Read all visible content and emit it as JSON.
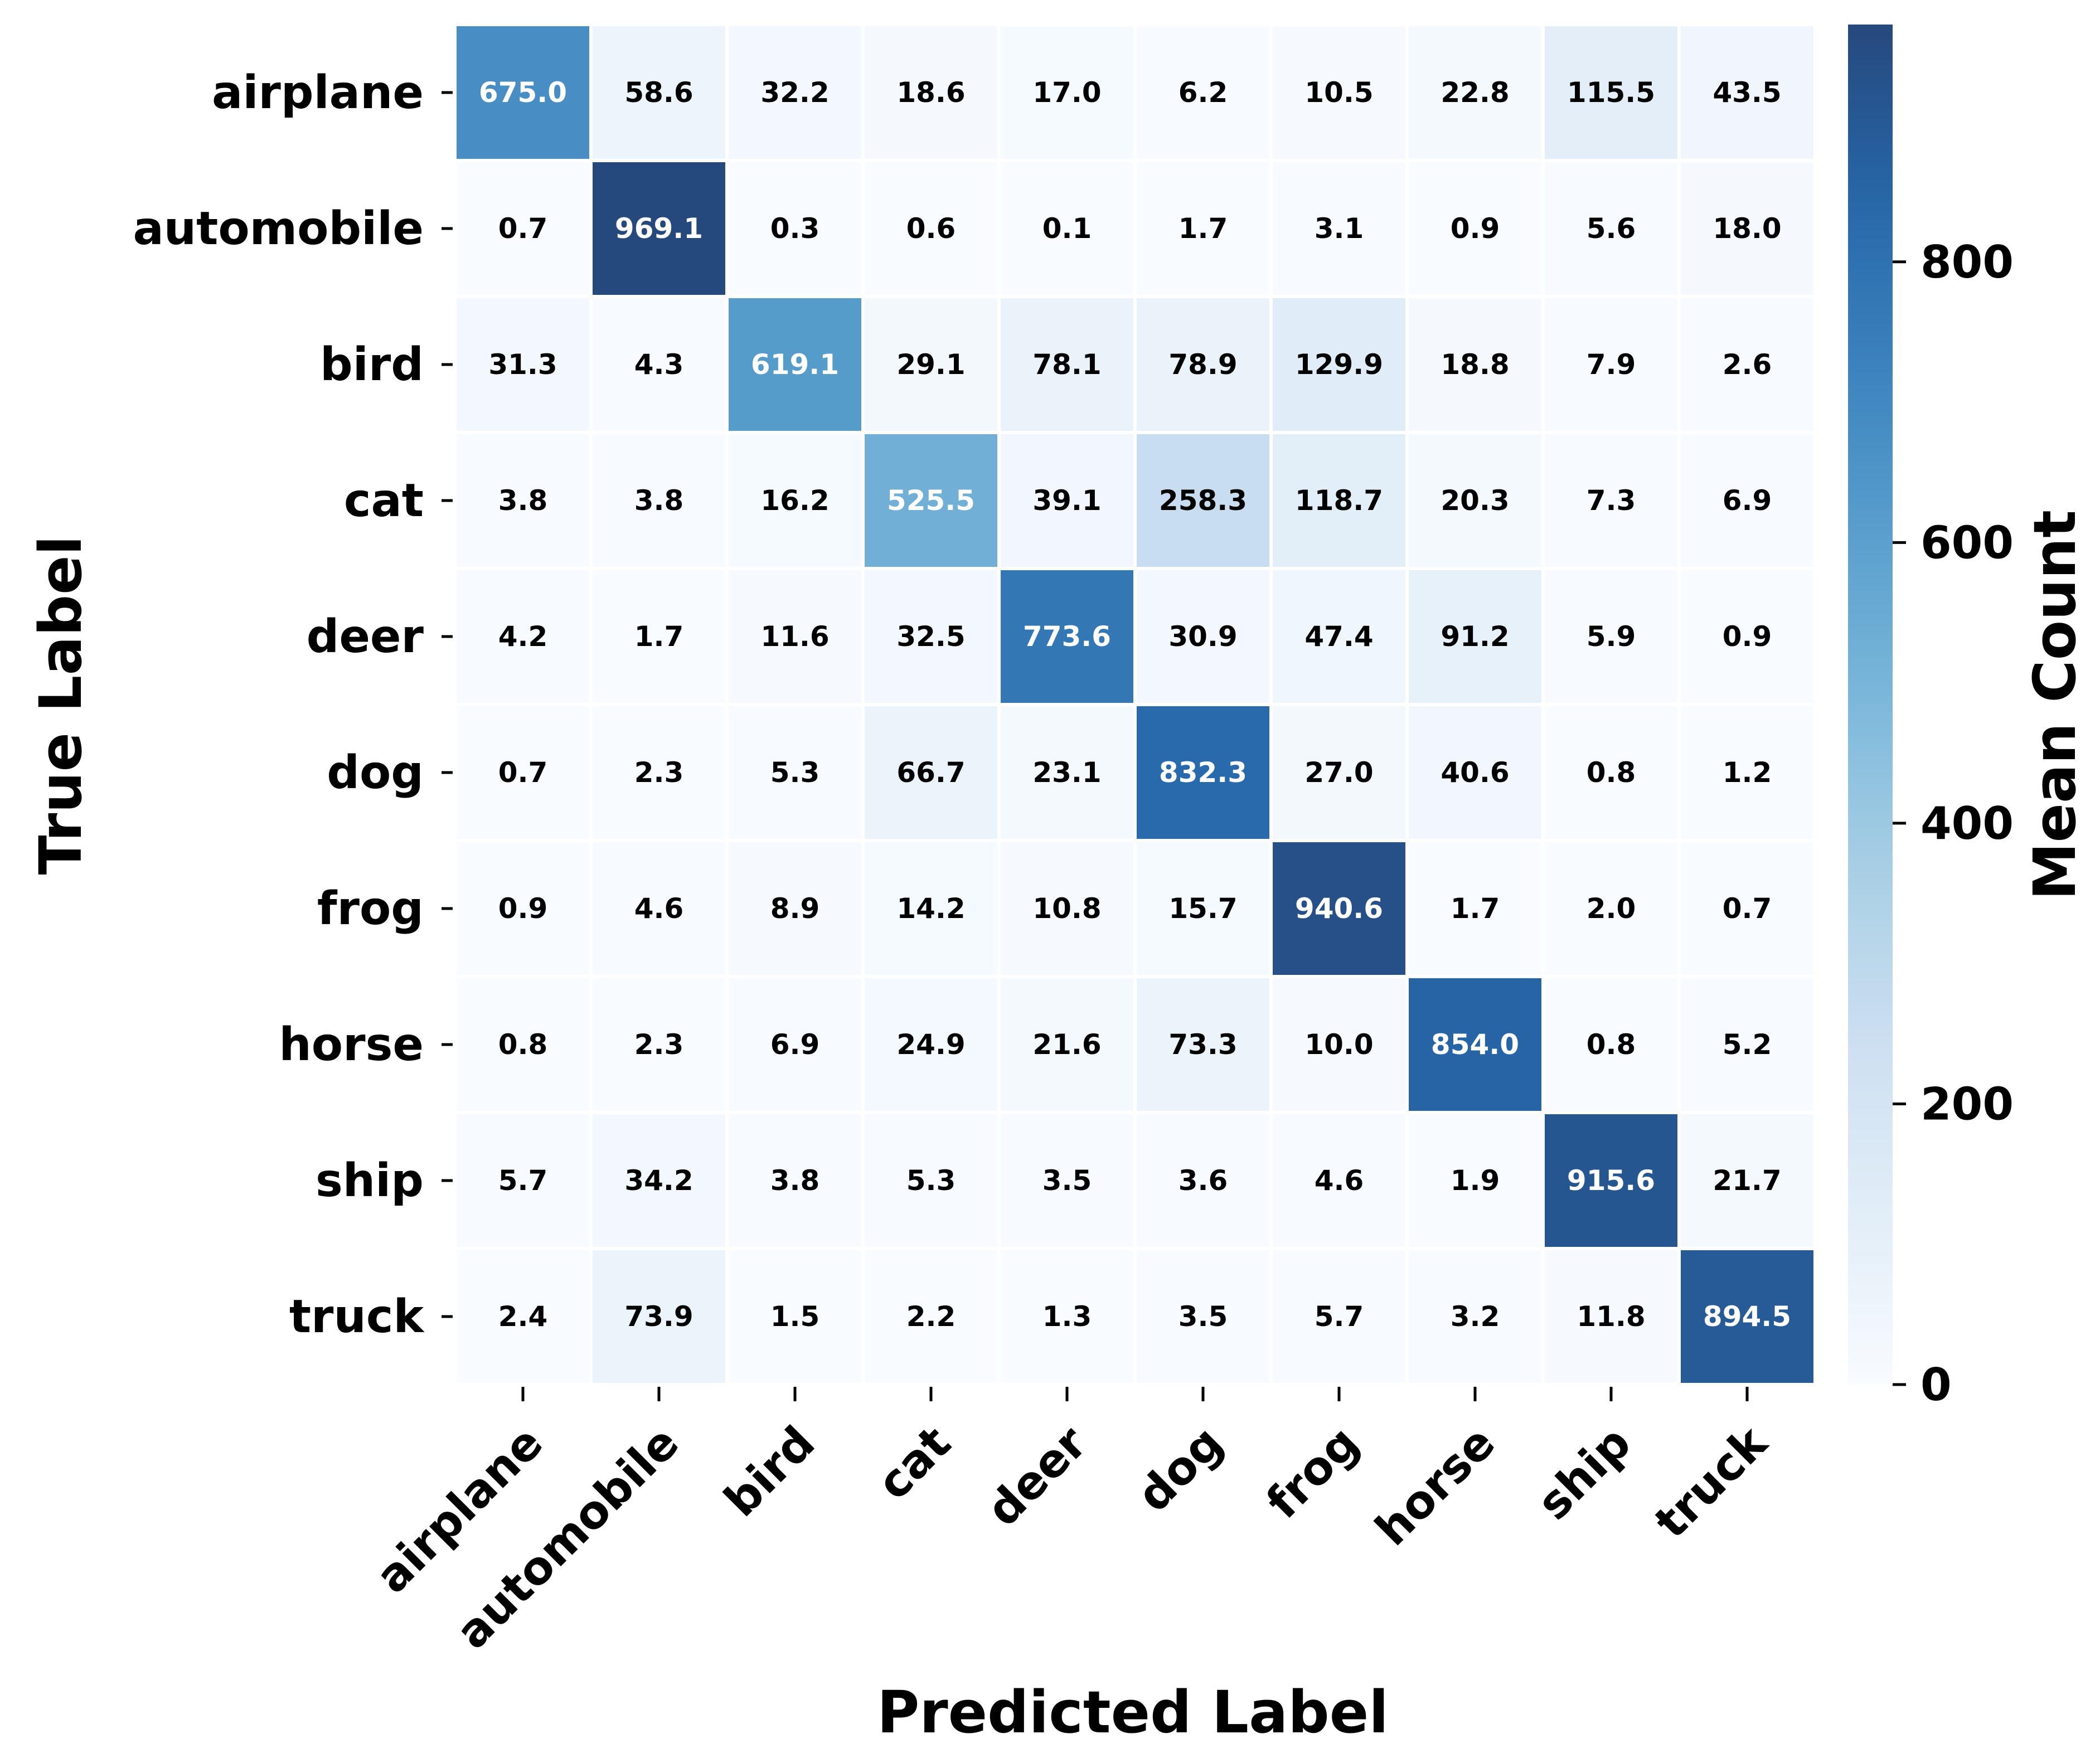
{
  "chart_data": {
    "type": "heatmap",
    "title": "",
    "xlabel": "Predicted Label",
    "ylabel": "True Label",
    "x_categories": [
      "airplane",
      "automobile",
      "bird",
      "cat",
      "deer",
      "dog",
      "frog",
      "horse",
      "ship",
      "truck"
    ],
    "y_categories": [
      "airplane",
      "automobile",
      "bird",
      "cat",
      "deer",
      "dog",
      "frog",
      "horse",
      "ship",
      "truck"
    ],
    "values": [
      [
        675.0,
        58.6,
        32.2,
        18.6,
        17.0,
        6.2,
        10.5,
        22.8,
        115.5,
        43.5
      ],
      [
        0.7,
        969.1,
        0.3,
        0.6,
        0.1,
        1.7,
        3.1,
        0.9,
        5.6,
        18.0
      ],
      [
        31.3,
        4.3,
        619.1,
        29.1,
        78.1,
        78.9,
        129.9,
        18.8,
        7.9,
        2.6
      ],
      [
        3.8,
        3.8,
        16.2,
        525.5,
        39.1,
        258.3,
        118.7,
        20.3,
        7.3,
        6.9
      ],
      [
        4.2,
        1.7,
        11.6,
        32.5,
        773.6,
        30.9,
        47.4,
        91.2,
        5.9,
        0.9
      ],
      [
        0.7,
        2.3,
        5.3,
        66.7,
        23.1,
        832.3,
        27.0,
        40.6,
        0.8,
        1.2
      ],
      [
        0.9,
        4.6,
        8.9,
        14.2,
        10.8,
        15.7,
        940.6,
        1.7,
        2.0,
        0.7
      ],
      [
        0.8,
        2.3,
        6.9,
        24.9,
        21.6,
        73.3,
        10.0,
        854.0,
        0.8,
        5.2
      ],
      [
        5.7,
        34.2,
        3.8,
        5.3,
        3.5,
        3.6,
        4.6,
        1.9,
        915.6,
        21.7
      ],
      [
        2.4,
        73.9,
        1.5,
        2.2,
        1.3,
        3.5,
        5.7,
        3.2,
        11.8,
        894.5
      ]
    ],
    "colorbar": {
      "label": "Mean Count",
      "range": [
        0,
        969.1
      ],
      "ticks": [
        0,
        200,
        400,
        600,
        800
      ],
      "colormap": "Blues",
      "colors": [
        "#f7fbff",
        "#deebf7",
        "#c6dbef",
        "#9ecae1",
        "#6baed6",
        "#4292c6",
        "#2171b5",
        "#08519c",
        "#08306b"
      ],
      "display_alpha": 0.88
    },
    "annotation_text_colors": {
      "dark_bg": "#ffffff",
      "light_bg": "#000000"
    },
    "grid": false
  }
}
